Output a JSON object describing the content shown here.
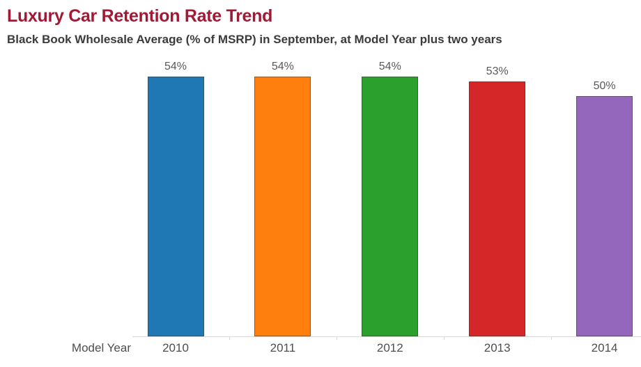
{
  "chart_data": {
    "type": "bar",
    "title": "Luxury Car Retention Rate Trend",
    "subtitle": "Black Book Wholesale Average (% of MSRP) in September, at Model Year plus two years",
    "xlabel": "Model Year",
    "ylabel": "",
    "categories": [
      "2010",
      "2011",
      "2012",
      "2013",
      "2014"
    ],
    "values": [
      54,
      54,
      54,
      53,
      50
    ],
    "value_labels": [
      "54%",
      "54%",
      "54%",
      "53%",
      "50%"
    ],
    "bar_colors": [
      "#1F77B4",
      "#FF7F0E",
      "#2CA02C",
      "#D62728",
      "#9467BD"
    ],
    "ylim": [
      0,
      58
    ],
    "grid": false,
    "legend": "none",
    "title_color": "#A11A35",
    "subtitle_color": "#3B3B3B",
    "value_label_color": "#595959",
    "axis_label_color": "#4E4E50",
    "axis_line_color": "#D9D9D9"
  }
}
